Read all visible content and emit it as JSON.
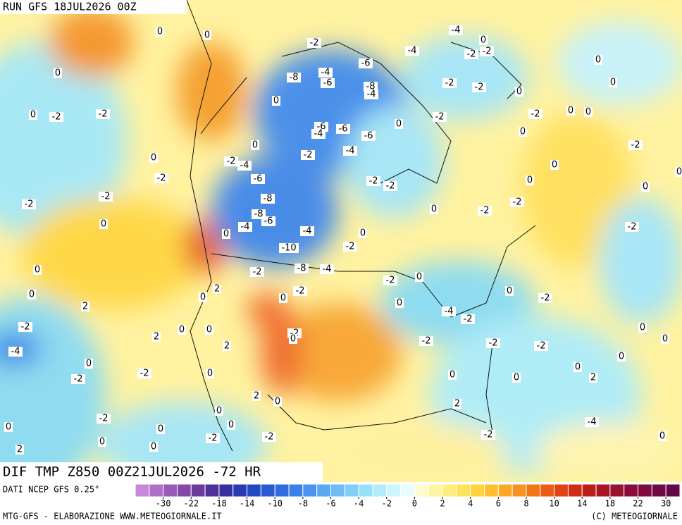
{
  "header": {
    "run": "RUN GFS 18JUL2026 00Z"
  },
  "map": {
    "field": "DIF TMP Z850 00Z21JUL2026 -72 HR",
    "contour_labels": [
      0,
      0,
      -2,
      -4,
      -4,
      0,
      -2,
      -2,
      0,
      0,
      -4,
      -6,
      -8,
      -6,
      -8,
      -4,
      -2,
      -2,
      0,
      0,
      0,
      0,
      -2,
      -2,
      -6,
      -4,
      -6,
      -6,
      -2,
      -2,
      0,
      0,
      0,
      0,
      0,
      -2,
      -4,
      -2,
      0,
      -2,
      -4,
      0,
      -2,
      -6,
      -2,
      -2,
      0,
      0,
      -2,
      -8,
      0,
      -2,
      -2,
      -8,
      -6,
      0,
      -2,
      0,
      -4,
      -4,
      0,
      0,
      -2,
      -10,
      -2,
      0,
      -2,
      -8,
      -4,
      -2,
      0,
      2,
      -2,
      0,
      0,
      0,
      0,
      0,
      -2,
      2,
      -4,
      -2,
      -2,
      0,
      0,
      -2,
      0,
      2,
      0,
      0,
      -2,
      -2,
      -2,
      -4,
      2,
      0,
      0,
      -2,
      -2,
      0,
      0,
      0,
      0,
      2,
      2,
      0,
      2,
      0,
      -2,
      0,
      -4,
      0,
      0,
      -2,
      -2,
      0,
      -2,
      2,
      0,
      0
    ]
  },
  "colorbar": {
    "source": "DATI NCEP GFS 0.25°",
    "ticks": [
      -30,
      -22,
      -18,
      -14,
      -10,
      -8,
      -6,
      -4,
      -2,
      0,
      2,
      4,
      6,
      8,
      10,
      14,
      18,
      22,
      30
    ],
    "colors": [
      "#c987d8",
      "#b070c8",
      "#9a5ab8",
      "#8448a8",
      "#6c3a9a",
      "#50309a",
      "#3a2ea0",
      "#2a3ab0",
      "#2448c0",
      "#2a5ad0",
      "#2e6ce0",
      "#3a80ea",
      "#4a94f0",
      "#5aa8f4",
      "#6cbcf6",
      "#80cff8",
      "#96e0fa",
      "#b0ecfb",
      "#cdf5fc",
      "#e6fcfd",
      "#fffbd0",
      "#fff4a0",
      "#ffec7a",
      "#ffe258",
      "#ffd23e",
      "#ffbe30",
      "#ffa828",
      "#fa9020",
      "#f47418",
      "#ec5a14",
      "#e04212",
      "#d02c14",
      "#bc1c1a",
      "#aa1424",
      "#9a1030",
      "#8c0c38",
      "#7e0a3e",
      "#700844",
      "#64064a"
    ]
  },
  "footer": {
    "left": "MTG-GFS - ELABORAZIONE WWW.METEOGIORNALE.IT",
    "right": "(C) METEOGIORNALE"
  }
}
